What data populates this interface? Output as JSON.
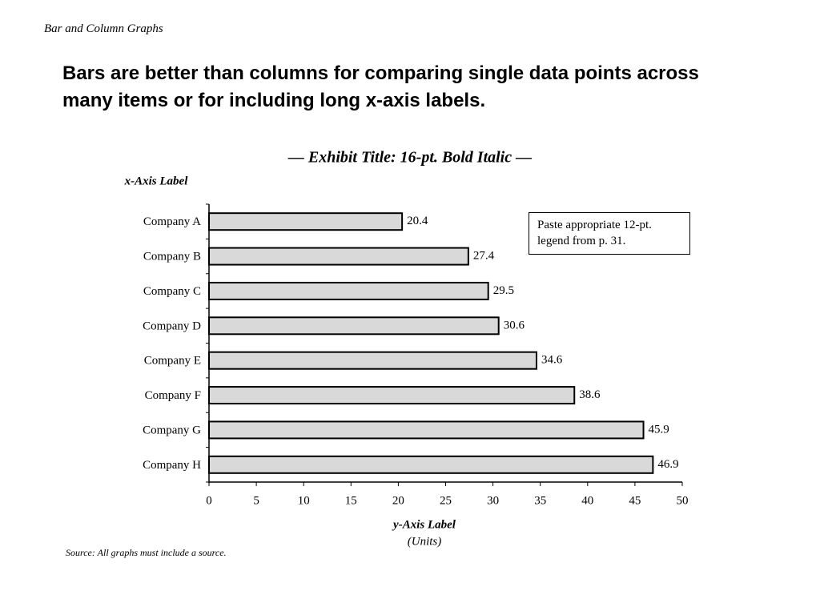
{
  "header": "Bar and Column Graphs",
  "headline": "Bars are better than columns for comparing single data points across many items or for including long x-axis labels.",
  "chart_data": {
    "type": "bar",
    "orientation": "horizontal",
    "title": "— Exhibit Title:  16-pt. Bold Italic —",
    "category_axis_label": "x-Axis Label",
    "value_axis_label": "y-Axis Label",
    "value_axis_units": "(Units)",
    "categories": [
      "Company A",
      "Company B",
      "Company C",
      "Company D",
      "Company E",
      "Company F",
      "Company G",
      "Company H"
    ],
    "values": [
      20.4,
      27.4,
      29.5,
      30.6,
      34.6,
      38.6,
      45.9,
      46.9
    ],
    "color": "#d9d9d9",
    "xlim": [
      0,
      50
    ],
    "xticks": [
      0,
      5,
      10,
      15,
      20,
      25,
      30,
      35,
      40,
      45,
      50
    ],
    "grid": false,
    "legend_note": "Paste appropriate 12-pt. legend from p. 31."
  },
  "source": "Source:  All graphs must include a source."
}
